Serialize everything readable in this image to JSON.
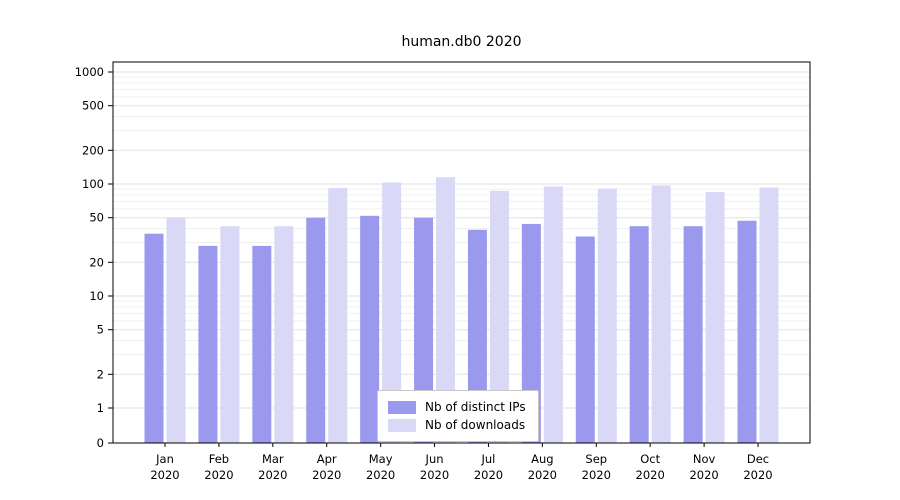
{
  "page": {
    "background": "#ffffff"
  },
  "chart_data": {
    "type": "bar",
    "title": "human.db0 2020",
    "categories": [
      "Jan 2020",
      "Feb 2020",
      "Mar 2020",
      "Apr 2020",
      "May 2020",
      "Jun 2020",
      "Jul 2020",
      "Aug 2020",
      "Sep 2020",
      "Oct 2020",
      "Nov 2020",
      "Dec 2020"
    ],
    "x_tick_line1": [
      "Jan",
      "Feb",
      "Mar",
      "Apr",
      "May",
      "Jun",
      "Jul",
      "Aug",
      "Sep",
      "Oct",
      "Nov",
      "Dec"
    ],
    "x_tick_line2": "2020",
    "series": [
      {
        "name": "Nb of distinct IPs",
        "color": "#9a99ee",
        "values": [
          36,
          28,
          28,
          50,
          52,
          50,
          39,
          44,
          34,
          42,
          42,
          47
        ]
      },
      {
        "name": "Nb of downloads",
        "color": "#d9d8f6",
        "values": [
          50,
          42,
          42,
          92,
          103,
          115,
          87,
          95,
          91,
          97,
          85,
          93
        ]
      }
    ],
    "yticks": [
      0,
      1,
      2,
      5,
      10,
      20,
      50,
      100,
      200,
      500,
      1000
    ],
    "ylim": [
      0,
      1000
    ],
    "y_scale": "log (linear segment 0-1, then log decades)",
    "grid": "horizontal major and minor gridlines",
    "legend_position": "bottom-center inside plot",
    "xlabel": "",
    "ylabel": ""
  },
  "colors": {
    "bar_ips": "#9a99ee",
    "bar_downloads": "#d9d8f6",
    "grid_major": "#e2e2e2",
    "grid_minor": "#f0f0f0",
    "axis": "#000000",
    "text": "#000000",
    "legend_border": "#c8c8c8"
  }
}
